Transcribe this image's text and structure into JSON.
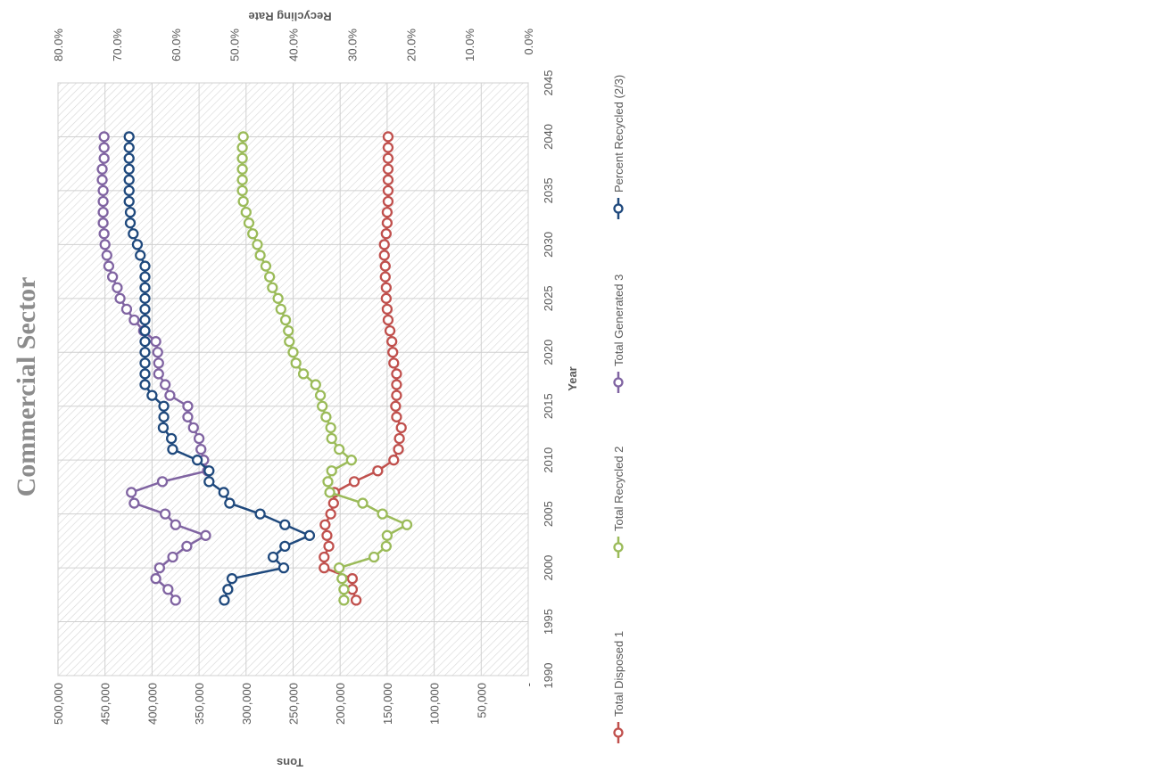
{
  "chart_data": {
    "type": "line",
    "title": "Commercial Sector",
    "xlabel": "Year",
    "ylabel": "Tons",
    "y2label": "Recycling Rate",
    "orientation": "rotated-90-clockwise",
    "legend_position": "right",
    "plot_background": "diagonal-hatch",
    "grid": true,
    "xlim": [
      1990,
      2045
    ],
    "x_ticks": [
      1990,
      1995,
      2000,
      2005,
      2010,
      2015,
      2020,
      2025,
      2030,
      2035,
      2040,
      2045
    ],
    "x_tick_labels": [
      "1990",
      "1995",
      "2000",
      "2005",
      "2010",
      "2015",
      "2020",
      "2025",
      "2030",
      "2035",
      "2040",
      "2045"
    ],
    "ylim": [
      0,
      500000
    ],
    "y_ticks": [
      0,
      50000,
      100000,
      150000,
      200000,
      250000,
      300000,
      350000,
      400000,
      450000,
      500000
    ],
    "y_tick_labels": [
      "-",
      "50,000",
      "100,000",
      "150,000",
      "200,000",
      "250,000",
      "300,000",
      "350,000",
      "400,000",
      "450,000",
      "500,000"
    ],
    "y2lim": [
      0,
      0.8
    ],
    "y2_ticks": [
      0,
      0.1,
      0.2,
      0.3,
      0.4,
      0.5,
      0.6,
      0.7,
      0.8
    ],
    "y2_tick_labels": [
      "0.0%",
      "10.0%",
      "20.0%",
      "30.0%",
      "40.0%",
      "50.0%",
      "60.0%",
      "70.0%",
      "80.0%"
    ],
    "x": [
      1997,
      1998,
      1999,
      2000,
      2001,
      2002,
      2003,
      2004,
      2005,
      2006,
      2007,
      2008,
      2009,
      2010,
      2011,
      2012,
      2013,
      2014,
      2015,
      2016,
      2017,
      2018,
      2019,
      2020,
      2021,
      2022,
      2023,
      2024,
      2025,
      2026,
      2027,
      2028,
      2029,
      2030,
      2031,
      2032,
      2033,
      2034,
      2035,
      2036,
      2037,
      2038,
      2039,
      2040
    ],
    "series": [
      {
        "name": "Total Disposed 1",
        "axis": "left",
        "color": "#c0504d",
        "values": [
          183000,
          187000,
          187000,
          217000,
          217000,
          212000,
          214000,
          216000,
          210000,
          207000,
          206000,
          185000,
          160000,
          143000,
          138000,
          137000,
          135000,
          140000,
          141000,
          140000,
          140000,
          140000,
          143000,
          144000,
          145000,
          147000,
          149000,
          150000,
          151000,
          151000,
          152000,
          152000,
          153000,
          153000,
          151000,
          150000,
          150000,
          149000,
          149000,
          149000,
          149000,
          149000,
          149000,
          149000
        ]
      },
      {
        "name": "Total Recycled 2",
        "axis": "left",
        "color": "#9bbb59",
        "values": [
          196000,
          196000,
          198000,
          201000,
          164000,
          151000,
          150000,
          129000,
          155000,
          176000,
          211000,
          213000,
          209000,
          188000,
          201000,
          209000,
          210000,
          215000,
          219000,
          221000,
          226000,
          239000,
          247000,
          250000,
          254000,
          255000,
          258000,
          263000,
          266000,
          272000,
          275000,
          279000,
          285000,
          288000,
          293000,
          297000,
          300000,
          303000,
          304000,
          304000,
          304000,
          304000,
          304000,
          303000
        ]
      },
      {
        "name": "Total Generated 3",
        "axis": "left",
        "color": "#8064a2",
        "values": [
          375000,
          383000,
          396000,
          392000,
          378000,
          363000,
          343000,
          375000,
          386000,
          419000,
          422000,
          389000,
          341000,
          345000,
          348000,
          350000,
          356000,
          362000,
          362000,
          381000,
          386000,
          393000,
          393000,
          394000,
          396000,
          409000,
          419000,
          427000,
          434000,
          437000,
          442000,
          446000,
          448000,
          450000,
          451000,
          452000,
          452000,
          452000,
          452000,
          453000,
          453000,
          451000,
          451000,
          451000
        ]
      },
      {
        "name": "Percent Recycled (2/3)",
        "axis": "right",
        "color": "#1f497d",
        "values": [
          0.517,
          0.511,
          0.504,
          0.416,
          0.434,
          0.414,
          0.372,
          0.414,
          0.456,
          0.508,
          0.518,
          0.543,
          0.543,
          0.563,
          0.605,
          0.607,
          0.621,
          0.62,
          0.62,
          0.64,
          0.652,
          0.652,
          0.652,
          0.652,
          0.652,
          0.652,
          0.652,
          0.652,
          0.652,
          0.652,
          0.652,
          0.652,
          0.66,
          0.665,
          0.672,
          0.677,
          0.677,
          0.679,
          0.679,
          0.679,
          0.679,
          0.679,
          0.679,
          0.679
        ]
      }
    ]
  }
}
